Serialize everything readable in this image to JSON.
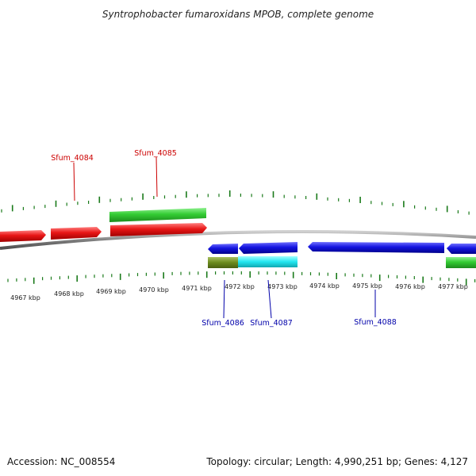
{
  "title": "Syntrophobacter fumaroxidans MPOB, complete genome",
  "footer": {
    "accession": "Accession: NC_008554",
    "topology": "Topology: circular; Length: 4,990,251 bp; Genes: 4,127"
  },
  "colors": {
    "forward_strand": "#e81616",
    "reverse_strand": "#1414e0",
    "highlight_green": "#33cc33",
    "highlight_olive": "#6b8a1e",
    "highlight_cyan": "#22e6f0",
    "tick": "#1a7a1a",
    "backbone": "#808080",
    "forward_label": "#cc0000",
    "reverse_label": "#0000aa"
  },
  "kbp_labels": [
    "4967 kbp",
    "4968 kbp",
    "4969 kbp",
    "4970 kbp",
    "4971 kbp",
    "4972 kbp",
    "4973 kbp",
    "4974 kbp",
    "4975 kbp",
    "4976 kbp",
    "4977 kbp"
  ],
  "gene_labels": {
    "forward": [
      "Sfum_4084",
      "Sfum_4085"
    ],
    "reverse": [
      "Sfum_4086",
      "Sfum_4087",
      "Sfum_4088"
    ]
  }
}
